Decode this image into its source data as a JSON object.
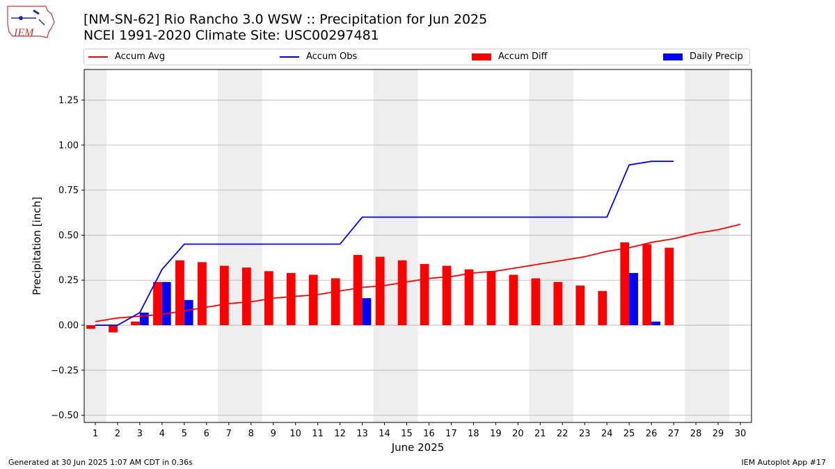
{
  "header": {
    "title_line1": "[NM-SN-62] Rio Rancho 3.0 WSW :: Precipitation for Jun 2025",
    "title_line2": "NCEI 1991-2020 Climate Site: USC00297481",
    "logo_text": "IEM"
  },
  "footer": {
    "generated": "Generated at 30 Jun 2025 1:07 AM CDT in 0.36s",
    "app": "IEM Autoplot App #17"
  },
  "colors": {
    "avg": "#ff0000",
    "obs": "#0000ff",
    "diff": "#ff0000",
    "daily": "#0000ff",
    "weekend_band": "#eeeeee",
    "grid": "#b0b0b0"
  },
  "chart_data": {
    "type": "bar",
    "xlabel": "June 2025",
    "ylabel": "Precipitation [inch]",
    "ylim": [
      -0.54,
      1.42
    ],
    "yticks": [
      -0.5,
      -0.25,
      0.0,
      0.25,
      0.5,
      0.75,
      1.0,
      1.25
    ],
    "ytick_labels": [
      "−0.50",
      "−0.25",
      "0.00",
      "0.25",
      "0.50",
      "0.75",
      "1.00",
      "1.25"
    ],
    "x": [
      1,
      2,
      3,
      4,
      5,
      6,
      7,
      8,
      9,
      10,
      11,
      12,
      13,
      14,
      15,
      16,
      17,
      18,
      19,
      20,
      21,
      22,
      23,
      24,
      25,
      26,
      27,
      28,
      29,
      30
    ],
    "grid": true,
    "legend_position": "top",
    "weekend_bands": [
      [
        1,
        1
      ],
      [
        7,
        8
      ],
      [
        14,
        15
      ],
      [
        21,
        22
      ],
      [
        28,
        29
      ]
    ],
    "series": [
      {
        "name": "Accum Avg",
        "kind": "line",
        "values": [
          0.02,
          0.04,
          0.05,
          0.06,
          0.08,
          0.1,
          0.12,
          0.13,
          0.15,
          0.16,
          0.17,
          0.19,
          0.21,
          0.22,
          0.24,
          0.26,
          0.27,
          0.29,
          0.3,
          0.32,
          0.34,
          0.36,
          0.38,
          0.41,
          0.43,
          0.46,
          0.48,
          0.51,
          0.53,
          0.56
        ]
      },
      {
        "name": "Accum Obs",
        "kind": "line",
        "values": [
          0.0,
          0.0,
          0.07,
          0.31,
          0.45,
          0.45,
          0.45,
          0.45,
          0.45,
          0.45,
          0.45,
          0.45,
          0.6,
          0.6,
          0.6,
          0.6,
          0.6,
          0.6,
          0.6,
          0.6,
          0.6,
          0.6,
          0.6,
          0.6,
          0.89,
          0.91,
          0.91,
          null,
          null,
          null
        ]
      },
      {
        "name": "Accum Diff",
        "kind": "bar",
        "values": [
          -0.02,
          -0.04,
          0.02,
          0.24,
          0.36,
          0.35,
          0.33,
          0.32,
          0.3,
          0.29,
          0.28,
          0.26,
          0.39,
          0.38,
          0.36,
          0.34,
          0.33,
          0.31,
          0.3,
          0.28,
          0.26,
          0.24,
          0.22,
          0.19,
          0.46,
          0.45,
          0.43,
          null,
          null,
          null
        ]
      },
      {
        "name": "Daily Precip",
        "kind": "bar",
        "values": [
          0,
          0,
          0.07,
          0.24,
          0.14,
          0,
          0,
          0,
          0,
          0,
          0,
          0,
          0.15,
          0,
          0,
          0,
          0,
          0,
          0,
          0,
          0,
          0,
          0,
          0,
          0.29,
          0.02,
          0,
          null,
          null,
          null
        ]
      }
    ]
  }
}
